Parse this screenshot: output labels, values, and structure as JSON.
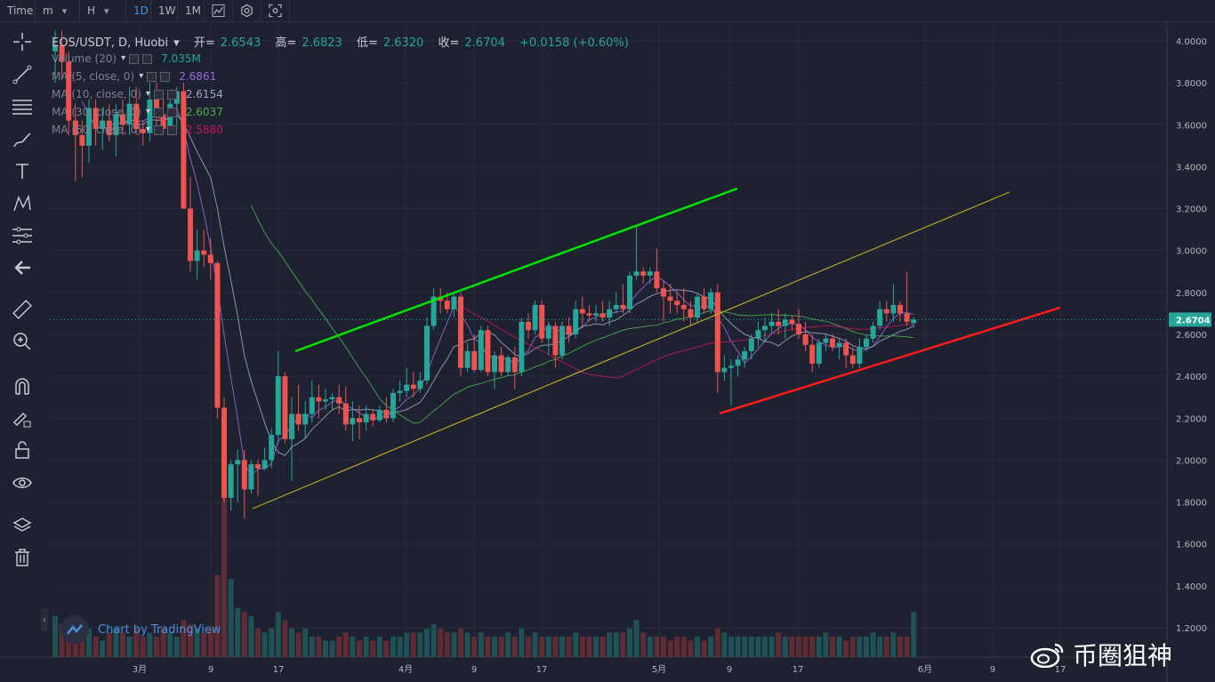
{
  "toolbar": {
    "items": [
      {
        "label": "Time"
      },
      {
        "label": "m"
      },
      {
        "label": "H"
      },
      {
        "label": "1D"
      },
      {
        "label": "1W"
      },
      {
        "label": "1M"
      }
    ],
    "active_interval": "1D",
    "icons": [
      "chart-type-icon",
      "settings-icon",
      "screenshot-icon"
    ]
  },
  "sidebar": {
    "icons": [
      "crosshair-icon",
      "trend-line-icon",
      "fib-lines-icon",
      "brush-icon",
      "text-icon",
      "pattern-icon",
      "measure-lines-icon",
      "back-arrow-icon",
      "ruler-icon",
      "zoom-in-icon",
      "magnet-icon",
      "lock-drawing-icon",
      "unlock-icon",
      "eye-icon",
      "layers-icon",
      "trash-icon"
    ]
  },
  "header": {
    "symbol": "EOS/USDT, D, Huobi",
    "open_label": "开=",
    "open": "2.6543",
    "high_label": "高=",
    "high": "2.6823",
    "low_label": "低=",
    "low": "2.6320",
    "close_label": "收=",
    "close": "2.6704",
    "change": "+0.0158 (+0.60%)"
  },
  "legend": [
    {
      "label": "Volume (20)",
      "value": "7.035M",
      "color": "#26a69a"
    },
    {
      "label": "MA (5, close, 0)",
      "value": "2.6861",
      "color": "#9c6ade"
    },
    {
      "label": "MA (10, close, 0)",
      "value": "2.6154",
      "color": "#9fa8c7"
    },
    {
      "label": "MA (30, close, 0)",
      "value": "2.6037",
      "color": "#4caf50"
    },
    {
      "label": "MA (60, close, 0)",
      "value": "2.5880",
      "color": "#c2185b"
    }
  ],
  "last_price_label": "2.6704",
  "branding": "Chart by TradingView",
  "watermark": "币圈狙神",
  "colors": {
    "up": "#26a69a",
    "down": "#ef5350",
    "bg": "#1e2130",
    "green_line": "#00e600",
    "red_line": "#ff1a1a",
    "yellow_line": "#b5a82a"
  },
  "chart_data": {
    "type": "candlestick",
    "price_axis": {
      "min": 1.2,
      "max": 4.0,
      "ticks": [
        "4.0000",
        "3.8000",
        "3.6000",
        "3.4000",
        "3.2000",
        "3.0000",
        "2.8000",
        "2.6000",
        "2.4000",
        "2.2000",
        "2.0000",
        "1.8000",
        "1.6000",
        "1.4000",
        "1.2000"
      ]
    },
    "time_axis": {
      "ticks": [
        "3月",
        "9",
        "17",
        "4月",
        "9",
        "17",
        "5月",
        "9",
        "17",
        "6月",
        "9",
        "17"
      ]
    },
    "candles": [
      {
        "o": 3.95,
        "h": 4.05,
        "l": 3.8,
        "c": 3.98
      },
      {
        "o": 3.98,
        "h": 4.05,
        "l": 3.82,
        "c": 3.9
      },
      {
        "o": 3.9,
        "h": 3.95,
        "l": 3.55,
        "c": 3.62
      },
      {
        "o": 3.62,
        "h": 3.7,
        "l": 3.33,
        "c": 3.55
      },
      {
        "o": 3.55,
        "h": 3.62,
        "l": 3.35,
        "c": 3.5
      },
      {
        "o": 3.5,
        "h": 3.72,
        "l": 3.42,
        "c": 3.68
      },
      {
        "o": 3.68,
        "h": 3.72,
        "l": 3.5,
        "c": 3.58
      },
      {
        "o": 3.58,
        "h": 3.68,
        "l": 3.48,
        "c": 3.62
      },
      {
        "o": 3.62,
        "h": 3.7,
        "l": 3.52,
        "c": 3.55
      },
      {
        "o": 3.55,
        "h": 3.7,
        "l": 3.45,
        "c": 3.65
      },
      {
        "o": 3.65,
        "h": 3.72,
        "l": 3.55,
        "c": 3.6
      },
      {
        "o": 3.6,
        "h": 3.78,
        "l": 3.55,
        "c": 3.7
      },
      {
        "o": 3.7,
        "h": 3.78,
        "l": 3.55,
        "c": 3.58
      },
      {
        "o": 3.58,
        "h": 3.62,
        "l": 3.5,
        "c": 3.56
      },
      {
        "o": 3.56,
        "h": 3.8,
        "l": 3.52,
        "c": 3.72
      },
      {
        "o": 3.72,
        "h": 3.8,
        "l": 3.56,
        "c": 3.65
      },
      {
        "o": 3.65,
        "h": 3.72,
        "l": 3.55,
        "c": 3.58
      },
      {
        "o": 3.58,
        "h": 3.74,
        "l": 3.56,
        "c": 3.7
      },
      {
        "o": 3.7,
        "h": 3.78,
        "l": 3.6,
        "c": 3.76
      },
      {
        "o": 3.76,
        "h": 3.8,
        "l": 3.2,
        "c": 3.2
      },
      {
        "o": 3.2,
        "h": 3.35,
        "l": 2.9,
        "c": 2.95
      },
      {
        "o": 2.95,
        "h": 3.1,
        "l": 2.86,
        "c": 3.0
      },
      {
        "o": 3.0,
        "h": 3.1,
        "l": 2.92,
        "c": 2.98
      },
      {
        "o": 2.98,
        "h": 3.06,
        "l": 2.86,
        "c": 2.94
      },
      {
        "o": 2.94,
        "h": 2.95,
        "l": 2.2,
        "c": 2.25
      },
      {
        "o": 2.25,
        "h": 2.3,
        "l": 1.8,
        "c": 1.82
      },
      {
        "o": 1.82,
        "h": 2.0,
        "l": 1.76,
        "c": 1.98
      },
      {
        "o": 1.98,
        "h": 2.05,
        "l": 1.8,
        "c": 2.0
      },
      {
        "o": 2.0,
        "h": 2.05,
        "l": 1.72,
        "c": 1.86
      },
      {
        "o": 1.86,
        "h": 2.0,
        "l": 1.84,
        "c": 1.98
      },
      {
        "o": 1.98,
        "h": 2.0,
        "l": 1.83,
        "c": 1.96
      },
      {
        "o": 1.96,
        "h": 2.06,
        "l": 1.95,
        "c": 2.0
      },
      {
        "o": 2.0,
        "h": 2.15,
        "l": 1.96,
        "c": 2.12
      },
      {
        "o": 2.12,
        "h": 2.52,
        "l": 2.08,
        "c": 2.4
      },
      {
        "o": 2.4,
        "h": 2.42,
        "l": 2.08,
        "c": 2.1
      },
      {
        "o": 2.1,
        "h": 2.3,
        "l": 1.9,
        "c": 2.22
      },
      {
        "o": 2.22,
        "h": 2.36,
        "l": 2.14,
        "c": 2.17
      },
      {
        "o": 2.17,
        "h": 2.28,
        "l": 2.1,
        "c": 2.22
      },
      {
        "o": 2.22,
        "h": 2.38,
        "l": 2.18,
        "c": 2.3
      },
      {
        "o": 2.3,
        "h": 2.36,
        "l": 2.2,
        "c": 2.28
      },
      {
        "o": 2.28,
        "h": 2.34,
        "l": 2.24,
        "c": 2.29
      },
      {
        "o": 2.29,
        "h": 2.32,
        "l": 2.24,
        "c": 2.3
      },
      {
        "o": 2.3,
        "h": 2.36,
        "l": 2.22,
        "c": 2.27
      },
      {
        "o": 2.27,
        "h": 2.35,
        "l": 2.14,
        "c": 2.17
      },
      {
        "o": 2.17,
        "h": 2.28,
        "l": 2.09,
        "c": 2.2
      },
      {
        "o": 2.2,
        "h": 2.26,
        "l": 2.1,
        "c": 2.18
      },
      {
        "o": 2.18,
        "h": 2.26,
        "l": 2.14,
        "c": 2.22
      },
      {
        "o": 2.22,
        "h": 2.24,
        "l": 2.16,
        "c": 2.19
      },
      {
        "o": 2.19,
        "h": 2.26,
        "l": 2.18,
        "c": 2.24
      },
      {
        "o": 2.24,
        "h": 2.3,
        "l": 2.18,
        "c": 2.2
      },
      {
        "o": 2.2,
        "h": 2.34,
        "l": 2.18,
        "c": 2.32
      },
      {
        "o": 2.32,
        "h": 2.38,
        "l": 2.28,
        "c": 2.33
      },
      {
        "o": 2.33,
        "h": 2.44,
        "l": 2.3,
        "c": 2.36
      },
      {
        "o": 2.36,
        "h": 2.42,
        "l": 2.3,
        "c": 2.34
      },
      {
        "o": 2.34,
        "h": 2.42,
        "l": 2.32,
        "c": 2.38
      },
      {
        "o": 2.38,
        "h": 2.68,
        "l": 2.36,
        "c": 2.64
      },
      {
        "o": 2.64,
        "h": 2.82,
        "l": 2.62,
        "c": 2.78
      },
      {
        "o": 2.78,
        "h": 2.82,
        "l": 2.7,
        "c": 2.76
      },
      {
        "o": 2.76,
        "h": 2.8,
        "l": 2.7,
        "c": 2.72
      },
      {
        "o": 2.72,
        "h": 2.8,
        "l": 2.68,
        "c": 2.78
      },
      {
        "o": 2.78,
        "h": 2.8,
        "l": 2.4,
        "c": 2.44
      },
      {
        "o": 2.44,
        "h": 2.56,
        "l": 2.42,
        "c": 2.52
      },
      {
        "o": 2.52,
        "h": 2.6,
        "l": 2.42,
        "c": 2.43
      },
      {
        "o": 2.43,
        "h": 2.64,
        "l": 2.42,
        "c": 2.62
      },
      {
        "o": 2.62,
        "h": 2.64,
        "l": 2.4,
        "c": 2.42
      },
      {
        "o": 2.42,
        "h": 2.52,
        "l": 2.34,
        "c": 2.5
      },
      {
        "o": 2.5,
        "h": 2.54,
        "l": 2.4,
        "c": 2.42
      },
      {
        "o": 2.42,
        "h": 2.5,
        "l": 2.4,
        "c": 2.49
      },
      {
        "o": 2.49,
        "h": 2.54,
        "l": 2.34,
        "c": 2.42
      },
      {
        "o": 2.42,
        "h": 2.68,
        "l": 2.4,
        "c": 2.66
      },
      {
        "o": 2.66,
        "h": 2.7,
        "l": 2.58,
        "c": 2.62
      },
      {
        "o": 2.62,
        "h": 2.76,
        "l": 2.6,
        "c": 2.74
      },
      {
        "o": 2.74,
        "h": 2.76,
        "l": 2.56,
        "c": 2.58
      },
      {
        "o": 2.58,
        "h": 2.66,
        "l": 2.5,
        "c": 2.64
      },
      {
        "o": 2.64,
        "h": 2.66,
        "l": 2.44,
        "c": 2.5
      },
      {
        "o": 2.5,
        "h": 2.66,
        "l": 2.48,
        "c": 2.64
      },
      {
        "o": 2.64,
        "h": 2.68,
        "l": 2.56,
        "c": 2.6
      },
      {
        "o": 2.6,
        "h": 2.76,
        "l": 2.58,
        "c": 2.72
      },
      {
        "o": 2.72,
        "h": 2.78,
        "l": 2.64,
        "c": 2.7
      },
      {
        "o": 2.7,
        "h": 2.74,
        "l": 2.66,
        "c": 2.69
      },
      {
        "o": 2.69,
        "h": 2.74,
        "l": 2.66,
        "c": 2.7
      },
      {
        "o": 2.7,
        "h": 2.76,
        "l": 2.66,
        "c": 2.68
      },
      {
        "o": 2.68,
        "h": 2.76,
        "l": 2.64,
        "c": 2.72
      },
      {
        "o": 2.72,
        "h": 2.8,
        "l": 2.7,
        "c": 2.74
      },
      {
        "o": 2.74,
        "h": 2.84,
        "l": 2.7,
        "c": 2.72
      },
      {
        "o": 2.72,
        "h": 2.9,
        "l": 2.7,
        "c": 2.88
      },
      {
        "o": 2.88,
        "h": 3.12,
        "l": 2.86,
        "c": 2.9
      },
      {
        "o": 2.9,
        "h": 2.92,
        "l": 2.84,
        "c": 2.88
      },
      {
        "o": 2.88,
        "h": 2.92,
        "l": 2.84,
        "c": 2.9
      },
      {
        "o": 2.9,
        "h": 3.01,
        "l": 2.8,
        "c": 2.82
      },
      {
        "o": 2.82,
        "h": 2.86,
        "l": 2.66,
        "c": 2.78
      },
      {
        "o": 2.78,
        "h": 2.84,
        "l": 2.7,
        "c": 2.76
      },
      {
        "o": 2.76,
        "h": 2.8,
        "l": 2.7,
        "c": 2.74
      },
      {
        "o": 2.74,
        "h": 2.82,
        "l": 2.66,
        "c": 2.72
      },
      {
        "o": 2.72,
        "h": 2.76,
        "l": 2.64,
        "c": 2.68
      },
      {
        "o": 2.68,
        "h": 2.8,
        "l": 2.66,
        "c": 2.78
      },
      {
        "o": 2.78,
        "h": 2.82,
        "l": 2.7,
        "c": 2.72
      },
      {
        "o": 2.72,
        "h": 2.82,
        "l": 2.7,
        "c": 2.8
      },
      {
        "o": 2.8,
        "h": 2.84,
        "l": 2.32,
        "c": 2.42
      },
      {
        "o": 2.42,
        "h": 2.5,
        "l": 2.38,
        "c": 2.44
      },
      {
        "o": 2.44,
        "h": 2.48,
        "l": 2.26,
        "c": 2.45
      },
      {
        "o": 2.45,
        "h": 2.5,
        "l": 2.4,
        "c": 2.48
      },
      {
        "o": 2.48,
        "h": 2.54,
        "l": 2.44,
        "c": 2.52
      },
      {
        "o": 2.52,
        "h": 2.6,
        "l": 2.48,
        "c": 2.58
      },
      {
        "o": 2.58,
        "h": 2.66,
        "l": 2.54,
        "c": 2.62
      },
      {
        "o": 2.62,
        "h": 2.68,
        "l": 2.56,
        "c": 2.64
      },
      {
        "o": 2.64,
        "h": 2.7,
        "l": 2.6,
        "c": 2.66
      },
      {
        "o": 2.66,
        "h": 2.72,
        "l": 2.6,
        "c": 2.64
      },
      {
        "o": 2.64,
        "h": 2.7,
        "l": 2.58,
        "c": 2.67
      },
      {
        "o": 2.67,
        "h": 2.69,
        "l": 2.62,
        "c": 2.65
      },
      {
        "o": 2.65,
        "h": 2.72,
        "l": 2.58,
        "c": 2.6
      },
      {
        "o": 2.6,
        "h": 2.66,
        "l": 2.52,
        "c": 2.55
      },
      {
        "o": 2.55,
        "h": 2.6,
        "l": 2.42,
        "c": 2.46
      },
      {
        "o": 2.46,
        "h": 2.58,
        "l": 2.44,
        "c": 2.56
      },
      {
        "o": 2.56,
        "h": 2.6,
        "l": 2.52,
        "c": 2.58
      },
      {
        "o": 2.58,
        "h": 2.6,
        "l": 2.52,
        "c": 2.54
      },
      {
        "o": 2.54,
        "h": 2.58,
        "l": 2.48,
        "c": 2.56
      },
      {
        "o": 2.56,
        "h": 2.58,
        "l": 2.44,
        "c": 2.5
      },
      {
        "o": 2.5,
        "h": 2.54,
        "l": 2.44,
        "c": 2.46
      },
      {
        "o": 2.46,
        "h": 2.58,
        "l": 2.44,
        "c": 2.54
      },
      {
        "o": 2.54,
        "h": 2.6,
        "l": 2.52,
        "c": 2.58
      },
      {
        "o": 2.58,
        "h": 2.66,
        "l": 2.56,
        "c": 2.64
      },
      {
        "o": 2.64,
        "h": 2.76,
        "l": 2.62,
        "c": 2.72
      },
      {
        "o": 2.72,
        "h": 2.76,
        "l": 2.66,
        "c": 2.7
      },
      {
        "o": 2.7,
        "h": 2.84,
        "l": 2.66,
        "c": 2.74
      },
      {
        "o": 2.74,
        "h": 2.76,
        "l": 2.66,
        "c": 2.7
      },
      {
        "o": 2.7,
        "h": 2.9,
        "l": 2.64,
        "c": 2.66
      },
      {
        "o": 2.6543,
        "h": 2.6823,
        "l": 2.632,
        "c": 2.6704
      }
    ],
    "volumes_m": [
      20,
      16,
      10,
      12,
      10,
      14,
      10,
      8,
      12,
      14,
      12,
      10,
      14,
      10,
      12,
      10,
      14,
      12,
      10,
      18,
      16,
      14,
      12,
      14,
      40,
      78,
      38,
      24,
      22,
      20,
      14,
      12,
      14,
      22,
      18,
      14,
      12,
      14,
      10,
      10,
      8,
      8,
      10,
      12,
      10,
      8,
      10,
      8,
      10,
      8,
      10,
      10,
      12,
      12,
      12,
      14,
      16,
      14,
      12,
      12,
      14,
      12,
      10,
      12,
      10,
      10,
      10,
      12,
      10,
      14,
      10,
      12,
      10,
      10,
      10,
      10,
      10,
      12,
      10,
      10,
      10,
      10,
      12,
      12,
      12,
      14,
      18,
      12,
      10,
      10,
      10,
      8,
      10,
      10,
      8,
      10,
      8,
      10,
      14,
      12,
      10,
      10,
      10,
      10,
      10,
      10,
      10,
      12,
      10,
      10,
      10,
      10,
      10,
      10,
      12,
      10,
      10,
      8,
      10,
      10,
      10,
      12,
      10,
      10,
      12,
      10,
      10,
      22,
      7
    ]
  }
}
